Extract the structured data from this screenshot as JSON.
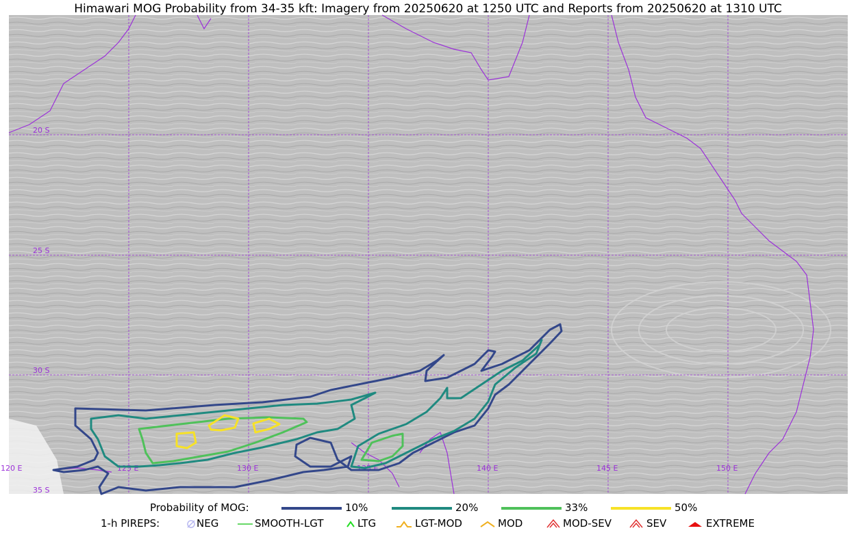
{
  "title": "Himawari MOG Probability from 34-35 kft: Imagery from 20250620 at 1250 UTC and Reports from 20250620 at 1310 UTC",
  "map": {
    "lat_labels": [
      "20 S",
      "25 S",
      "30 S",
      "35 S"
    ],
    "lon_labels": [
      "120 E",
      "125 E",
      "130 E",
      "135 E",
      "140 E",
      "145 E",
      "150 E"
    ],
    "graticule_color": "#9b30d9",
    "coast_color": "#9b30d9",
    "background_color": "#bdbdbd"
  },
  "legend": {
    "prob_label": "Probability of MOG:",
    "prob_items": [
      {
        "label": "10%",
        "color": "#33478a"
      },
      {
        "label": "20%",
        "color": "#1f8a80"
      },
      {
        "label": "33%",
        "color": "#4fc15a"
      },
      {
        "label": "50%",
        "color": "#f7e227"
      }
    ],
    "pirep_label": "1-h PIREPS:",
    "pirep_items": [
      {
        "label": "NEG",
        "icon": "neg-circle-icon",
        "color": "#b8b8f0"
      },
      {
        "label": "SMOOTH-LGT",
        "icon": "line-icon",
        "color": "#33cc33"
      },
      {
        "label": "LTG",
        "icon": "caret-icon",
        "color": "#22dd22"
      },
      {
        "label": "LGT-MOD",
        "icon": "hat-icon",
        "color": "#f0b020"
      },
      {
        "label": "MOD",
        "icon": "caret-wide-icon",
        "color": "#f0b020"
      },
      {
        "label": "MOD-SEV",
        "icon": "double-caret-icon",
        "color": "#e03030"
      },
      {
        "label": "SEV",
        "icon": "double-caret-icon",
        "color": "#e03030"
      },
      {
        "label": "EXTREME",
        "icon": "filled-triangle-icon",
        "color": "#e81010"
      }
    ]
  }
}
